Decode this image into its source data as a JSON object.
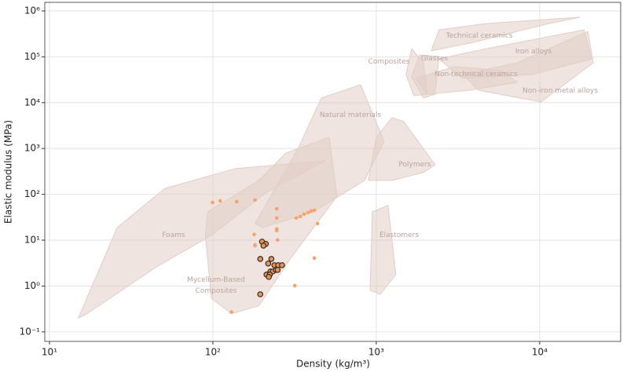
{
  "chart_data": {
    "type": "scatter",
    "xlabel": "Density (kg/m³)",
    "ylabel": "Elastic modulus (MPa)",
    "log_x": true,
    "log_y": true,
    "grid": true,
    "xlim": [
      9.36,
      31300
    ],
    "ylim": [
      0.062,
      1540000
    ],
    "xticks": [
      {
        "value": 10,
        "label": "10¹"
      },
      {
        "value": 100,
        "label": "10²"
      },
      {
        "value": 1000,
        "label": "10³"
      },
      {
        "value": 10000,
        "label": "10⁴"
      }
    ],
    "yticks": [
      {
        "value": 0.1,
        "label": "10⁻¹"
      },
      {
        "value": 1,
        "label": "10⁰"
      },
      {
        "value": 10,
        "label": "10¹"
      },
      {
        "value": 100,
        "label": "10²"
      },
      {
        "value": 1000,
        "label": "10³"
      },
      {
        "value": 10000,
        "label": "10⁴"
      },
      {
        "value": 100000,
        "label": "10⁵"
      },
      {
        "value": 1000000,
        "label": "10⁶"
      }
    ],
    "regions": [
      {
        "name": "Foams",
        "color": "#e2cdc6",
        "x": [
          15,
          26,
          51,
          137,
          488,
          213,
          98,
          45,
          17
        ],
        "y": [
          0.2,
          19,
          135,
          363,
          540,
          111,
          12.7,
          2.6,
          0.25
        ]
      },
      {
        "name": "Mycelium-Based Composites",
        "color": "#e2cdc6",
        "x": [
          93,
          191,
          281,
          515,
          575,
          297,
          191,
          130,
          98,
          90
        ],
        "y": [
          41.6,
          201,
          798,
          1757,
          91,
          3.9,
          0.37,
          0.25,
          0.54,
          12.7
        ]
      },
      {
        "name": "Natural materials",
        "color": "#e2cdc6",
        "x": [
          181,
          331,
          461,
          802,
          1117,
          847,
          413,
          202
        ],
        "y": [
          23,
          972,
          12600,
          24600,
          1442,
          201,
          41.6,
          18.9
        ]
      },
      {
        "name": "Polymers",
        "color": "#e2cdc6",
        "x": [
          896,
          1000,
          1248,
          1472,
          2290,
          1941,
          1248
        ],
        "y": [
          201,
          1757,
          4700,
          3860,
          443,
          298,
          201
        ]
      },
      {
        "name": "Elastomers",
        "color": "#e2cdc6",
        "x": [
          916,
          947,
          1180,
          1318,
          1057
        ],
        "y": [
          0.81,
          41.6,
          57,
          1.78,
          0.66
        ]
      },
      {
        "name": "Composites",
        "color": "#e2cdc6",
        "x": [
          1521,
          1643,
          1941,
          2051,
          1698
        ],
        "y": [
          41100,
          150000,
          74100,
          15300,
          14200
        ]
      },
      {
        "name": "Glasses",
        "color": "#e2cdc6",
        "x": [
          1643,
          1837,
          2420,
          2290,
          1941
        ],
        "y": [
          36500,
          110000,
          101700,
          15300,
          12600
        ]
      },
      {
        "name": "Non-technical ceramics",
        "color": "#e2cdc6",
        "x": [
          1738,
          3020,
          5850,
          7290,
          3770,
          2051
        ],
        "y": [
          33700,
          61000,
          50000,
          27700,
          18700,
          15300
        ]
      },
      {
        "name": "Technical ceramics",
        "color": "#e2cdc6",
        "x": [
          2170,
          2420,
          4700,
          17700,
          11400,
          3770
        ],
        "y": [
          134000,
          388000,
          532000,
          730000,
          532000,
          199000
        ]
      },
      {
        "name": "Iron alloys",
        "color": "#e2cdc6",
        "x": [
          2420,
          4700,
          18700,
          20800,
          9100,
          3370
        ],
        "y": [
          90400,
          150000,
          388000,
          90400,
          41100,
          33700
        ]
      },
      {
        "name": "Non-iron metal alloys",
        "color": "#e2cdc6",
        "x": [
          3370,
          7290,
          19700,
          21300,
          10200,
          4210
        ],
        "y": [
          41100,
          74100,
          359000,
          74100,
          10350,
          18700
        ]
      }
    ],
    "series": [
      {
        "color": "#f5a36b",
        "x": [
          99.5,
          111,
          140,
          181,
          246,
          246,
          246,
          246,
          249,
          179,
          181,
          181,
          324,
          343,
          362,
          383,
          400,
          418,
          437,
          418,
          317,
          130
        ],
        "y": [
          66.7,
          72,
          69,
          75,
          48.7,
          30.3,
          17.5,
          16.2,
          10.1,
          13.3,
          7.9,
          7.6,
          30.3,
          32.8,
          36.9,
          40,
          43.3,
          45,
          23,
          4.06,
          1.02,
          0.27
        ]
      },
      {
        "color": "#e0955a",
        "edgecolor": "#3a2a20",
        "x": [
          200,
          211,
          204,
          195,
          228,
          218,
          238,
          251,
          265,
          213,
          225,
          233,
          223,
          243,
          249,
          220,
          195
        ],
        "y": [
          9.3,
          8.3,
          7.6,
          3.9,
          3.9,
          3.1,
          2.85,
          2.85,
          2.85,
          1.78,
          2.08,
          2.08,
          1.78,
          2.25,
          2.25,
          1.58,
          0.66
        ]
      }
    ]
  }
}
